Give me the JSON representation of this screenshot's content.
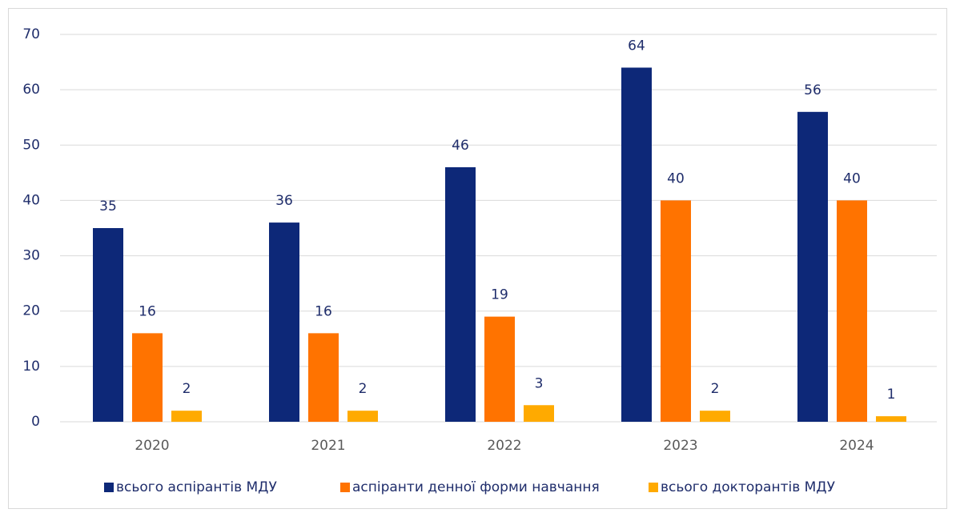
{
  "chart_data": {
    "type": "bar",
    "categories": [
      "2020",
      "2021",
      "2022",
      "2023",
      "2024"
    ],
    "series": [
      {
        "name": "всього аспірантів МДУ",
        "color": "#0d2878",
        "values": [
          35,
          36,
          46,
          64,
          56
        ]
      },
      {
        "name": "аспіранти денної форми навчання",
        "color": "#ff7300",
        "values": [
          16,
          16,
          19,
          40,
          40
        ]
      },
      {
        "name": "всього докторантів МДУ",
        "color": "#ffaa00",
        "values": [
          2,
          2,
          3,
          2,
          1
        ]
      }
    ],
    "ylim": [
      0,
      70
    ],
    "yticks": [
      0,
      10,
      20,
      30,
      40,
      50,
      60,
      70
    ],
    "grid": true,
    "legend": "bottom"
  }
}
